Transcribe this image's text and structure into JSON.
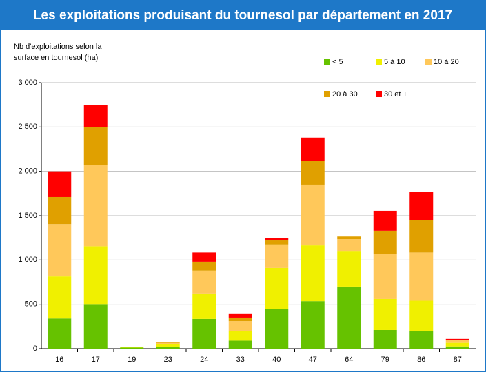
{
  "chart_data": {
    "type": "stacked_bar",
    "title": "Les exploitations produisant du tournesol par département en 2017",
    "y_label": [
      "Nb d'exploitations selon la",
      "surface en tournesol (ha)"
    ],
    "categories": [
      "16",
      "17",
      "19",
      "23",
      "24",
      "33",
      "40",
      "47",
      "64",
      "79",
      "86",
      "87"
    ],
    "series": [
      {
        "name": "< 5",
        "color": "#66c200",
        "values": [
          340,
          495,
          12,
          20,
          335,
          90,
          450,
          535,
          700,
          210,
          200,
          25
        ]
      },
      {
        "name": "5 à 10",
        "color": "#f0f000",
        "values": [
          475,
          660,
          8,
          30,
          280,
          110,
          460,
          630,
          395,
          350,
          340,
          40
        ]
      },
      {
        "name": "10 à 20",
        "color": "#ffc85a",
        "values": [
          590,
          920,
          2,
          15,
          265,
          110,
          265,
          685,
          140,
          510,
          545,
          30
        ]
      },
      {
        "name": "20 à 30",
        "color": "#e0a000",
        "values": [
          305,
          420,
          0,
          5,
          100,
          40,
          45,
          265,
          30,
          260,
          365,
          5
        ]
      },
      {
        "name": "30 et +",
        "color": "#ff0000",
        "values": [
          290,
          255,
          0,
          5,
          105,
          40,
          30,
          265,
          0,
          225,
          320,
          10
        ]
      }
    ],
    "ylim": [
      0,
      3000
    ],
    "yticks": [
      0,
      {
        "value": 500,
        "label": "500"
      },
      {
        "value": 1000,
        "label": "1 000"
      },
      {
        "value": 1500,
        "label": "1 500"
      },
      {
        "value": 2000,
        "label": "2 000"
      },
      {
        "value": 2500,
        "label": "2 500"
      },
      {
        "value": 3000,
        "label": "3 000"
      }
    ],
    "grid": true
  }
}
